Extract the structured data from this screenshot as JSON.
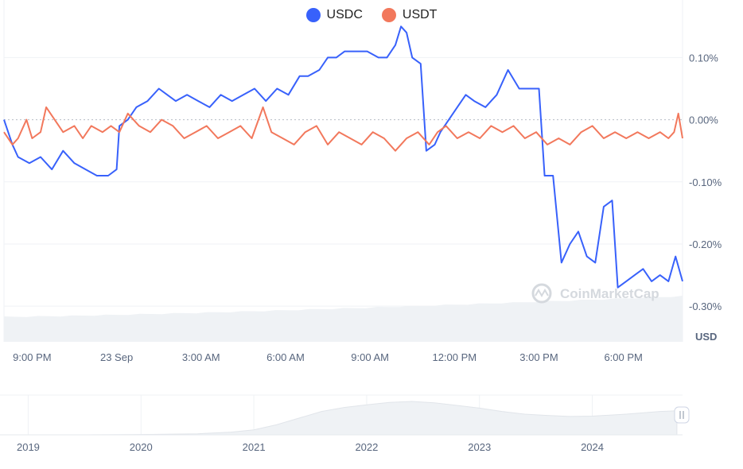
{
  "chart_data": {
    "type": "line",
    "title": "",
    "unit_label": "USD",
    "watermark": "CoinMarketCap",
    "ylim": [
      -0.0031,
      0.0019
    ],
    "y_ticks": [
      {
        "value": 0.001,
        "label": "0.10%"
      },
      {
        "value": 0.0,
        "label": "0.00%"
      },
      {
        "value": -0.001,
        "label": "-0.10%"
      },
      {
        "value": -0.002,
        "label": "-0.20%"
      },
      {
        "value": -0.003,
        "label": "-0.30%"
      }
    ],
    "x_ticks": [
      "9:00 PM",
      "23 Sep",
      "3:00 AM",
      "6:00 AM",
      "9:00 AM",
      "12:00 PM",
      "3:00 PM",
      "6:00 PM"
    ],
    "x_range_hours": [
      -0.5,
      23.6
    ],
    "x_tick_hours": [
      0.5,
      3.5,
      6.5,
      9.5,
      12.5,
      15.5,
      18.5,
      21.5
    ],
    "series": [
      {
        "name": "USDC",
        "color": "#3861fb",
        "points": [
          [
            -0.5,
            0.0
          ],
          [
            -0.2,
            -0.0004
          ],
          [
            0.0,
            -0.0006
          ],
          [
            0.4,
            -0.0007
          ],
          [
            0.8,
            -0.0006
          ],
          [
            1.2,
            -0.0008
          ],
          [
            1.6,
            -0.0005
          ],
          [
            2.0,
            -0.0007
          ],
          [
            2.4,
            -0.0008
          ],
          [
            2.8,
            -0.0009
          ],
          [
            3.2,
            -0.0009
          ],
          [
            3.5,
            -0.0008
          ],
          [
            3.6,
            -0.0001
          ],
          [
            3.9,
            0.0
          ],
          [
            4.2,
            0.0002
          ],
          [
            4.6,
            0.0003
          ],
          [
            5.0,
            0.0005
          ],
          [
            5.3,
            0.0004
          ],
          [
            5.6,
            0.0003
          ],
          [
            6.0,
            0.0004
          ],
          [
            6.4,
            0.0003
          ],
          [
            6.8,
            0.0002
          ],
          [
            7.2,
            0.0004
          ],
          [
            7.6,
            0.0003
          ],
          [
            8.0,
            0.0004
          ],
          [
            8.4,
            0.0005
          ],
          [
            8.8,
            0.0003
          ],
          [
            9.2,
            0.0005
          ],
          [
            9.6,
            0.0004
          ],
          [
            10.0,
            0.0007
          ],
          [
            10.3,
            0.0007
          ],
          [
            10.7,
            0.0008
          ],
          [
            11.0,
            0.001
          ],
          [
            11.3,
            0.001
          ],
          [
            11.6,
            0.0011
          ],
          [
            12.0,
            0.0011
          ],
          [
            12.4,
            0.0011
          ],
          [
            12.8,
            0.001
          ],
          [
            13.1,
            0.001
          ],
          [
            13.4,
            0.0012
          ],
          [
            13.6,
            0.0015
          ],
          [
            13.8,
            0.0014
          ],
          [
            14.0,
            0.001
          ],
          [
            14.3,
            0.0009
          ],
          [
            14.5,
            -0.0005
          ],
          [
            14.8,
            -0.0004
          ],
          [
            15.0,
            -0.0002
          ],
          [
            15.3,
            0.0
          ],
          [
            15.6,
            0.0002
          ],
          [
            15.9,
            0.0004
          ],
          [
            16.2,
            0.0003
          ],
          [
            16.6,
            0.0002
          ],
          [
            17.0,
            0.0004
          ],
          [
            17.4,
            0.0008
          ],
          [
            17.8,
            0.0005
          ],
          [
            18.2,
            0.0005
          ],
          [
            18.5,
            0.0005
          ],
          [
            18.7,
            -0.0009
          ],
          [
            19.0,
            -0.0009
          ],
          [
            19.3,
            -0.0023
          ],
          [
            19.6,
            -0.002
          ],
          [
            19.9,
            -0.0018
          ],
          [
            20.2,
            -0.0022
          ],
          [
            20.5,
            -0.0023
          ],
          [
            20.8,
            -0.0014
          ],
          [
            21.1,
            -0.0013
          ],
          [
            21.3,
            -0.0027
          ],
          [
            21.6,
            -0.0026
          ],
          [
            21.9,
            -0.0025
          ],
          [
            22.2,
            -0.0024
          ],
          [
            22.5,
            -0.0026
          ],
          [
            22.8,
            -0.0025
          ],
          [
            23.1,
            -0.0026
          ],
          [
            23.35,
            -0.0022
          ],
          [
            23.6,
            -0.0026
          ]
        ]
      },
      {
        "name": "USDT",
        "color": "#f2785c",
        "points": [
          [
            -0.5,
            -0.0002
          ],
          [
            -0.2,
            -0.0004
          ],
          [
            0.0,
            -0.0003
          ],
          [
            0.3,
            0.0
          ],
          [
            0.5,
            -0.0003
          ],
          [
            0.8,
            -0.0002
          ],
          [
            1.0,
            0.0002
          ],
          [
            1.3,
            0.0
          ],
          [
            1.6,
            -0.0002
          ],
          [
            2.0,
            -0.0001
          ],
          [
            2.3,
            -0.0003
          ],
          [
            2.6,
            -0.0001
          ],
          [
            3.0,
            -0.0002
          ],
          [
            3.3,
            -0.0001
          ],
          [
            3.6,
            -0.0002
          ],
          [
            3.9,
            0.0001
          ],
          [
            4.3,
            -0.0001
          ],
          [
            4.7,
            -0.0002
          ],
          [
            5.1,
            0.0
          ],
          [
            5.5,
            -0.0001
          ],
          [
            5.9,
            -0.0003
          ],
          [
            6.3,
            -0.0002
          ],
          [
            6.7,
            -0.0001
          ],
          [
            7.1,
            -0.0003
          ],
          [
            7.5,
            -0.0002
          ],
          [
            7.9,
            -0.0001
          ],
          [
            8.3,
            -0.0003
          ],
          [
            8.7,
            0.0002
          ],
          [
            9.0,
            -0.0002
          ],
          [
            9.4,
            -0.0003
          ],
          [
            9.8,
            -0.0004
          ],
          [
            10.2,
            -0.0002
          ],
          [
            10.6,
            -0.0001
          ],
          [
            11.0,
            -0.0004
          ],
          [
            11.4,
            -0.0002
          ],
          [
            11.8,
            -0.0003
          ],
          [
            12.2,
            -0.0004
          ],
          [
            12.6,
            -0.0002
          ],
          [
            13.0,
            -0.0003
          ],
          [
            13.4,
            -0.0005
          ],
          [
            13.8,
            -0.0003
          ],
          [
            14.2,
            -0.0002
          ],
          [
            14.6,
            -0.0004
          ],
          [
            14.9,
            -0.0002
          ],
          [
            15.2,
            -0.0001
          ],
          [
            15.6,
            -0.0003
          ],
          [
            16.0,
            -0.0002
          ],
          [
            16.4,
            -0.0003
          ],
          [
            16.8,
            -0.0001
          ],
          [
            17.2,
            -0.0002
          ],
          [
            17.6,
            -0.0001
          ],
          [
            18.0,
            -0.0003
          ],
          [
            18.4,
            -0.0002
          ],
          [
            18.8,
            -0.0004
          ],
          [
            19.2,
            -0.0003
          ],
          [
            19.6,
            -0.0004
          ],
          [
            20.0,
            -0.0002
          ],
          [
            20.4,
            -0.0001
          ],
          [
            20.8,
            -0.0003
          ],
          [
            21.2,
            -0.0002
          ],
          [
            21.6,
            -0.0003
          ],
          [
            22.0,
            -0.0002
          ],
          [
            22.4,
            -0.0003
          ],
          [
            22.8,
            -0.0002
          ],
          [
            23.1,
            -0.0003
          ],
          [
            23.3,
            -0.0002
          ],
          [
            23.45,
            0.0001
          ],
          [
            23.6,
            -0.0003
          ]
        ]
      }
    ]
  },
  "volume_area": {
    "color": "#eff2f5"
  },
  "navigator": {
    "year_labels": [
      "2019",
      "2020",
      "2021",
      "2022",
      "2023",
      "2024"
    ],
    "history": [
      [
        2018.85,
        0.0
      ],
      [
        2019.5,
        0.0
      ],
      [
        2020.0,
        0.01
      ],
      [
        2020.5,
        0.03
      ],
      [
        2020.8,
        0.08
      ],
      [
        2021.0,
        0.15
      ],
      [
        2021.2,
        0.3
      ],
      [
        2021.4,
        0.5
      ],
      [
        2021.6,
        0.7
      ],
      [
        2021.8,
        0.82
      ],
      [
        2022.0,
        0.9
      ],
      [
        2022.2,
        0.97
      ],
      [
        2022.4,
        1.0
      ],
      [
        2022.6,
        0.96
      ],
      [
        2022.8,
        0.88
      ],
      [
        2023.0,
        0.8
      ],
      [
        2023.2,
        0.7
      ],
      [
        2023.4,
        0.62
      ],
      [
        2023.6,
        0.58
      ],
      [
        2023.8,
        0.55
      ],
      [
        2024.0,
        0.56
      ],
      [
        2024.3,
        0.62
      ],
      [
        2024.6,
        0.7
      ],
      [
        2024.75,
        0.72
      ]
    ]
  }
}
